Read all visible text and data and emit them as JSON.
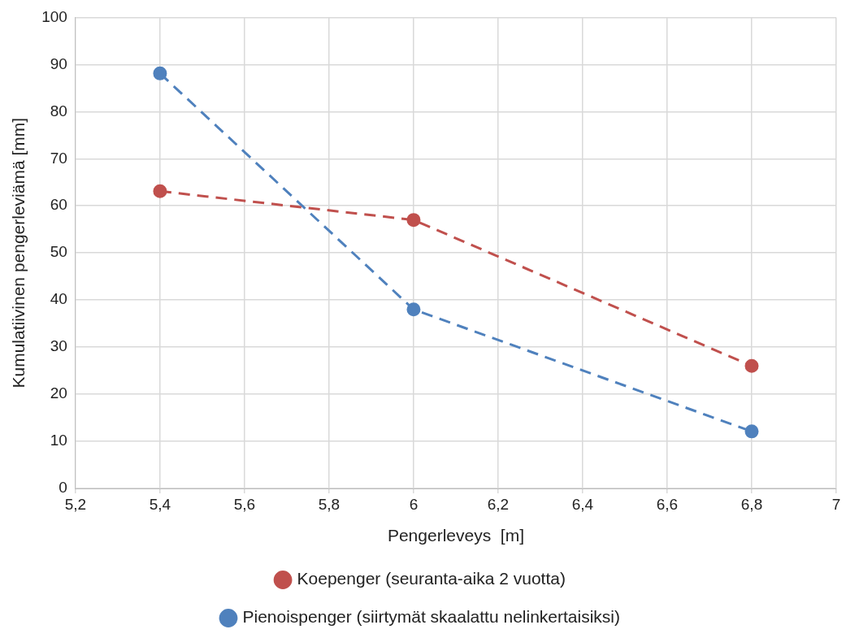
{
  "chart_data": {
    "type": "line",
    "xlabel": "Pengerleveys  [m]",
    "ylabel": "Kumulatiivinen pengerleviämä [mm]",
    "x": [
      5.4,
      6,
      6.8
    ],
    "series": [
      {
        "name": "Koepenger (seuranta-aika 2 vuotta)",
        "color": "#c0504d",
        "values": [
          63.1,
          57,
          26
        ]
      },
      {
        "name": "Pienoispenger (siirtymät skaalattu nelinkertaisiksi)",
        "color": "#4f81bd",
        "values": [
          88.1,
          38,
          12.1
        ]
      }
    ],
    "xlim": [
      5.2,
      7
    ],
    "xticks": [
      {
        "value": 5.2,
        "label": "5,2"
      },
      {
        "value": 5.4,
        "label": "5,4"
      },
      {
        "value": 5.6,
        "label": "5,6"
      },
      {
        "value": 5.8,
        "label": "5,8"
      },
      6,
      {
        "value": 6.2,
        "label": "6,2"
      },
      {
        "value": 6.4,
        "label": "6,4"
      },
      {
        "value": 6.6,
        "label": "6,6"
      },
      {
        "value": 6.8,
        "label": "6,8"
      },
      7
    ],
    "ylim": [
      0,
      100
    ],
    "yticks": [
      0,
      10,
      20,
      30,
      40,
      50,
      60,
      70,
      80,
      90,
      100
    ],
    "grid": true,
    "legend": "bottom",
    "marker": "circle",
    "line_style": "dashed"
  }
}
